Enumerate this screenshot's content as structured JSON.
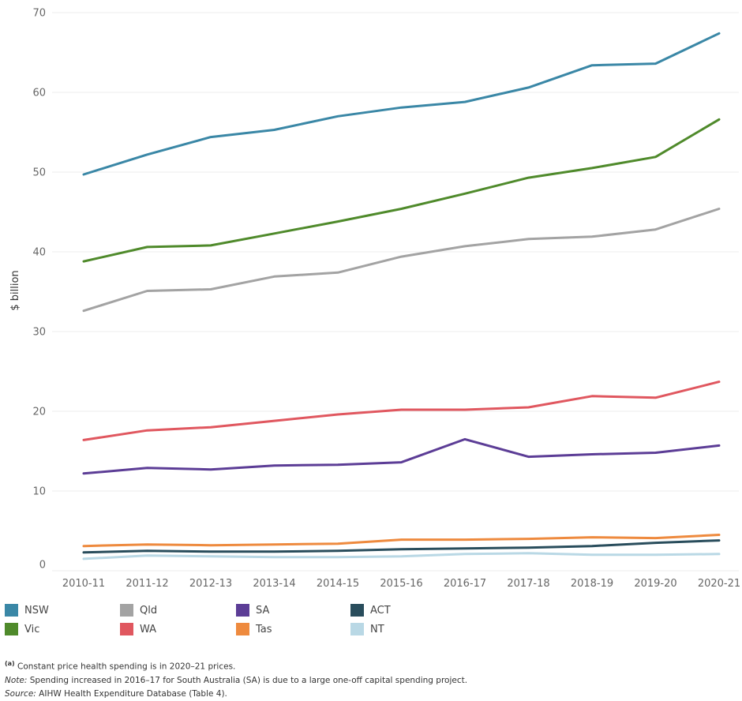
{
  "chart_data": {
    "type": "line",
    "title": "",
    "xlabel": "",
    "ylabel": "$ billion",
    "ylim": [
      0,
      70
    ],
    "yticks": [
      0,
      10,
      20,
      30,
      40,
      50,
      60,
      70
    ],
    "grid": "horizontal",
    "legend_position": "bottom",
    "categories": [
      "2010-11",
      "2011-12",
      "2012-13",
      "2013-14",
      "2014-15",
      "2015-16",
      "2016-17",
      "2017-18",
      "2018-19",
      "2019-20",
      "2020-21"
    ],
    "series": [
      {
        "name": "NSW",
        "color": "#3a87a6",
        "values": [
          49.7,
          52.2,
          54.4,
          55.3,
          57.0,
          58.1,
          58.8,
          60.6,
          63.4,
          63.6,
          67.4
        ]
      },
      {
        "name": "Vic",
        "color": "#4f8a2b",
        "values": [
          38.8,
          40.6,
          40.8,
          42.3,
          43.8,
          45.4,
          47.3,
          49.3,
          50.5,
          51.9,
          56.6
        ]
      },
      {
        "name": "Qld",
        "color": "#a3a3a3",
        "values": [
          32.6,
          35.1,
          35.3,
          36.9,
          37.4,
          39.4,
          40.7,
          41.6,
          41.9,
          42.8,
          45.4
        ]
      },
      {
        "name": "WA",
        "color": "#e0575f",
        "values": [
          16.4,
          17.6,
          18.0,
          18.8,
          19.6,
          20.2,
          20.2,
          20.5,
          21.9,
          21.7,
          23.7
        ]
      },
      {
        "name": "SA",
        "color": "#5c3d96",
        "values": [
          12.2,
          12.9,
          12.7,
          13.2,
          13.3,
          13.6,
          16.5,
          14.3,
          14.6,
          14.8,
          15.7
        ]
      },
      {
        "name": "ACT",
        "color": "#294d5c",
        "values": [
          2.3,
          2.5,
          2.4,
          2.4,
          2.5,
          2.7,
          2.8,
          2.9,
          3.1,
          3.5,
          3.8
        ]
      },
      {
        "name": "Tas",
        "color": "#ee8a3e",
        "values": [
          3.1,
          3.3,
          3.2,
          3.3,
          3.4,
          3.9,
          3.9,
          4.0,
          4.2,
          4.1,
          4.5
        ]
      },
      {
        "name": "NT",
        "color": "#b9d8e5",
        "values": [
          1.5,
          1.9,
          1.8,
          1.7,
          1.7,
          1.8,
          2.1,
          2.2,
          2.0,
          2.0,
          2.1
        ]
      }
    ]
  },
  "legend": {
    "items": [
      {
        "name": "NSW",
        "color": "#3a87a6"
      },
      {
        "name": "Qld",
        "color": "#a3a3a3"
      },
      {
        "name": "SA",
        "color": "#5c3d96"
      },
      {
        "name": "ACT",
        "color": "#294d5c"
      },
      {
        "name": "Vic",
        "color": "#4f8a2b"
      },
      {
        "name": "WA",
        "color": "#e0575f"
      },
      {
        "name": "Tas",
        "color": "#ee8a3e"
      },
      {
        "name": "NT",
        "color": "#b9d8e5"
      }
    ]
  },
  "notes": {
    "footnote_marker": "(a)",
    "footnote_text": " Constant price health spending is in 2020–21 prices.",
    "note_label": "Note:",
    "note_text": " Spending increased in 2016–17 for South Australia (SA) is due to a large one-off capital spending project.",
    "source_label": "Source:",
    "source_text": " AIHW Health Expenditure Database (Table 4)."
  }
}
